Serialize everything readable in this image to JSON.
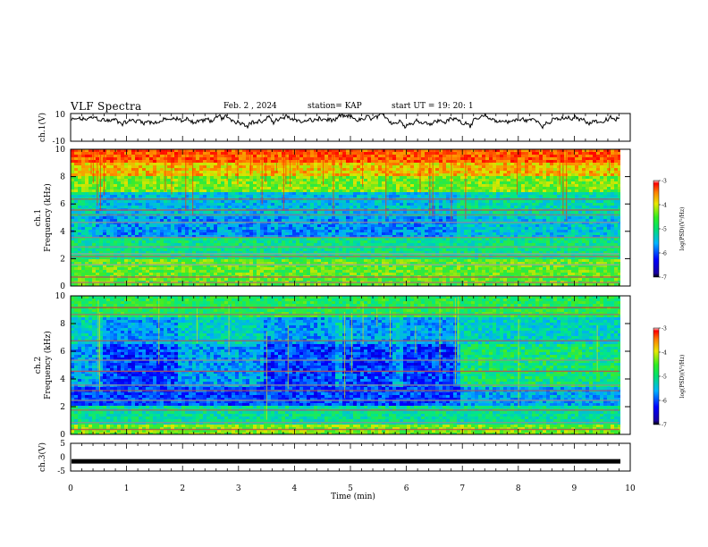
{
  "header": {
    "title": "VLF Spectra",
    "date": "Feb. 2 , 2024",
    "station": "station= KAP",
    "start": "start  UT  =   19: 20: 1"
  },
  "chart_data": [
    {
      "type": "line",
      "panel": "ch1-waveform",
      "ylabel": "ch.1(V)",
      "ylim": [
        -10,
        10
      ],
      "y_ticks": [
        "10",
        "-10"
      ],
      "x_range_min": [
        0,
        10
      ],
      "description_values": "noisy waveform centered near +5 V, fluctuating between about 0 and 10 V"
    },
    {
      "type": "heatmap",
      "panel": "ch1-spectrogram",
      "ylabel_1": "ch.1",
      "ylabel_2": "Frequency (kHz)",
      "y_ticks": [
        "0",
        "2",
        "4",
        "6",
        "8",
        "10"
      ],
      "ylim": [
        0,
        10
      ],
      "x_range_min": [
        0,
        10
      ],
      "colorbar": {
        "label": "log(PSD)(V²/Hz)",
        "range": [
          -7,
          -3
        ],
        "ticks": [
          "-3",
          "-4",
          "-5",
          "-6",
          "-7"
        ]
      }
    },
    {
      "type": "heatmap",
      "panel": "ch2-spectrogram",
      "ylabel_1": "ch.2",
      "ylabel_2": "Frequency (kHz)",
      "y_ticks": [
        "0",
        "2",
        "4",
        "6",
        "8",
        "10"
      ],
      "ylim": [
        0,
        10
      ],
      "x_range_min": [
        0,
        10
      ],
      "colorbar": {
        "label": "log(PSD)(V²/Hz)",
        "range": [
          -7,
          -3
        ],
        "ticks": [
          "-3",
          "-4",
          "-5",
          "-6",
          "-7"
        ]
      }
    },
    {
      "type": "line",
      "panel": "ch3-waveform",
      "ylabel": "ch.3(V)",
      "ylim": [
        -5,
        5
      ],
      "y_ticks": [
        "5",
        "0",
        "-5"
      ],
      "x_range_min": [
        0,
        10
      ],
      "xlabel": "Time  (min)",
      "x_ticks": [
        "0",
        "1",
        "2",
        "3",
        "4",
        "5",
        "6",
        "7",
        "8",
        "9",
        "10"
      ],
      "constant_value_V": -1.5
    }
  ]
}
